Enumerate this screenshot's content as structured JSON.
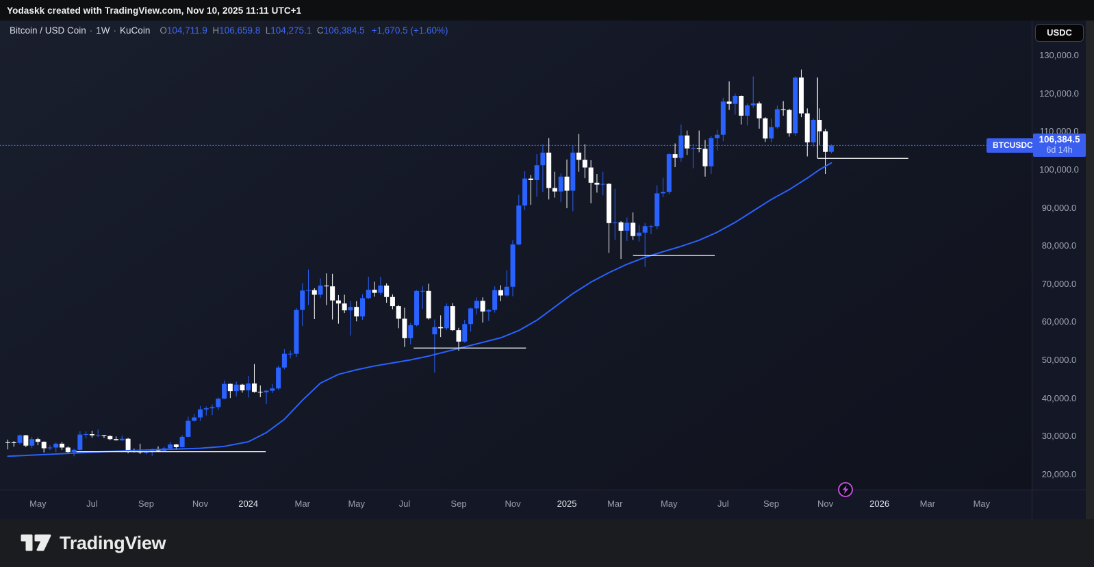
{
  "attribution": "Yodaskk created with TradingView.com, Nov 10, 2025 11:11 UTC+1",
  "legend": {
    "symbol": "Bitcoin / USD Coin",
    "sep": "·",
    "interval": "1W",
    "exchange": "KuCoin",
    "o_label": "O",
    "o": "104,711.9",
    "h_label": "H",
    "h": "106,659.8",
    "l_label": "L",
    "l": "104,275.1",
    "c_label": "C",
    "c": "106,384.5",
    "change": "+1,670.5 (+1.60%)"
  },
  "price_axis": {
    "currency_button": "USDC",
    "price_label": {
      "value": "106,384.5",
      "countdown": "6d 14h"
    }
  },
  "symbol_tag": "BTCUSDC",
  "footer": {
    "brand": "TradingView"
  },
  "colors": {
    "candle_up": "#2962ff",
    "candle_down": "#ffffff",
    "ma_line": "#2962ff",
    "support_line": "#ffffff",
    "price_line": "#2f62ff",
    "label_blue": "#3a5ef0",
    "marker_purple": "#bd4fd8"
  },
  "icons": {
    "lightning_marker": "lightning-bolt",
    "tradingview_logo": "tv-monogram"
  },
  "chart_data": {
    "type": "candlestick",
    "title": "Bitcoin / USD Coin · 1W · KuCoin",
    "symbol": "BTCUSDC",
    "interval": "1W",
    "exchange": "KuCoin",
    "last_ohlc": {
      "open": 104711.9,
      "high": 106659.8,
      "low": 104275.1,
      "close": 106384.5,
      "change": 1670.5,
      "change_pct": 1.6
    },
    "ylim": [
      20000,
      130000
    ],
    "grid": false,
    "price_ticks": [
      {
        "text": "130,000.0",
        "price": 130000
      },
      {
        "text": "120,000.0",
        "price": 120000
      },
      {
        "text": "110,000.0",
        "price": 110000
      },
      {
        "text": "100,000.0",
        "price": 100000
      },
      {
        "text": "90,000.0",
        "price": 90000
      },
      {
        "text": "80,000.0",
        "price": 80000
      },
      {
        "text": "70,000.0",
        "price": 70000
      },
      {
        "text": "60,000.0",
        "price": 60000
      },
      {
        "text": "50,000.0",
        "price": 50000
      },
      {
        "text": "40,000.0",
        "price": 40000
      },
      {
        "text": "30,000.0",
        "price": 30000
      },
      {
        "text": "20,000.0",
        "price": 20000
      }
    ],
    "time_ticks": [
      {
        "label": "May",
        "week": 5,
        "year": false
      },
      {
        "label": "Jul",
        "week": 14,
        "year": false
      },
      {
        "label": "Sep",
        "week": 23,
        "year": false
      },
      {
        "label": "Nov",
        "week": 32,
        "year": false
      },
      {
        "label": "2024",
        "week": 40,
        "year": true
      },
      {
        "label": "Mar",
        "week": 49,
        "year": false
      },
      {
        "label": "May",
        "week": 58,
        "year": false
      },
      {
        "label": "Jul",
        "week": 66,
        "year": false
      },
      {
        "label": "Sep",
        "week": 75,
        "year": false
      },
      {
        "label": "Nov",
        "week": 84,
        "year": false
      },
      {
        "label": "2025",
        "week": 93,
        "year": true
      },
      {
        "label": "Mar",
        "week": 101,
        "year": false
      },
      {
        "label": "May",
        "week": 110,
        "year": false
      },
      {
        "label": "Jul",
        "week": 119,
        "year": false
      },
      {
        "label": "Sep",
        "week": 127,
        "year": false
      },
      {
        "label": "Nov",
        "week": 136,
        "year": false
      },
      {
        "label": "2026",
        "week": 145,
        "year": true
      },
      {
        "label": "Mar",
        "week": 153,
        "year": false
      },
      {
        "label": "May",
        "week": 162,
        "year": false
      }
    ],
    "candles_ohlc": [
      [
        28500,
        29200,
        26600,
        28450
      ],
      [
        28450,
        28800,
        27300,
        28300
      ],
      [
        28300,
        30500,
        27900,
        30300
      ],
      [
        30300,
        30400,
        27200,
        27600
      ],
      [
        27600,
        29900,
        26900,
        29300
      ],
      [
        29300,
        29700,
        27700,
        28600
      ],
      [
        28600,
        28700,
        25800,
        26900
      ],
      [
        26900,
        27700,
        26400,
        27100
      ],
      [
        27100,
        28400,
        25900,
        28100
      ],
      [
        28100,
        28500,
        26500,
        27100
      ],
      [
        27100,
        27400,
        25400,
        25900
      ],
      [
        25900,
        26800,
        24800,
        26500
      ],
      [
        26500,
        31400,
        26300,
        30500
      ],
      [
        30500,
        31300,
        29500,
        30600
      ],
      [
        30600,
        31500,
        29700,
        30300
      ],
      [
        30300,
        31800,
        29900,
        30300
      ],
      [
        30300,
        30400,
        29600,
        30100
      ],
      [
        30100,
        30300,
        29000,
        29300
      ],
      [
        29300,
        30000,
        28900,
        29000
      ],
      [
        29000,
        30200,
        28800,
        29400
      ],
      [
        29400,
        29600,
        25600,
        26100
      ],
      [
        26100,
        26800,
        25800,
        26000
      ],
      [
        26000,
        28100,
        25400,
        25900
      ],
      [
        25900,
        26400,
        25300,
        25900
      ],
      [
        25900,
        26800,
        24900,
        26500
      ],
      [
        26500,
        27400,
        26100,
        26200
      ],
      [
        26200,
        27300,
        26000,
        26900
      ],
      [
        26900,
        28600,
        26500,
        27900
      ],
      [
        27900,
        28000,
        26500,
        27200
      ],
      [
        27200,
        30300,
        27100,
        29900
      ],
      [
        29900,
        35200,
        29800,
        34100
      ],
      [
        34100,
        35900,
        33900,
        35000
      ],
      [
        35000,
        38000,
        34100,
        37100
      ],
      [
        37100,
        37900,
        35500,
        37400
      ],
      [
        37400,
        38400,
        35600,
        37700
      ],
      [
        37700,
        40200,
        36900,
        39900
      ],
      [
        39900,
        44700,
        39900,
        43800
      ],
      [
        43800,
        43900,
        40100,
        41900
      ],
      [
        41900,
        44400,
        40500,
        43600
      ],
      [
        43600,
        43800,
        41500,
        42100
      ],
      [
        42100,
        45900,
        40200,
        43900
      ],
      [
        43900,
        49000,
        41500,
        41700
      ],
      [
        41700,
        43400,
        40300,
        41600
      ],
      [
        41600,
        42200,
        38500,
        42000
      ],
      [
        42000,
        43800,
        41400,
        42600
      ],
      [
        42600,
        48600,
        42200,
        48100
      ],
      [
        48100,
        52900,
        47600,
        51700
      ],
      [
        51700,
        52500,
        50500,
        51700
      ],
      [
        51700,
        63700,
        50900,
        63200
      ],
      [
        63200,
        70200,
        59000,
        68300
      ],
      [
        68300,
        73800,
        64500,
        68400
      ],
      [
        68400,
        68900,
        60800,
        67200
      ],
      [
        67200,
        71500,
        66400,
        69600
      ],
      [
        69600,
        72800,
        64500,
        69400
      ],
      [
        69400,
        72700,
        60700,
        65700
      ],
      [
        65700,
        67100,
        59600,
        64900
      ],
      [
        64900,
        67200,
        62400,
        63100
      ],
      [
        63100,
        65500,
        56500,
        64000
      ],
      [
        64000,
        65500,
        60200,
        61500
      ],
      [
        61500,
        67300,
        60600,
        66300
      ],
      [
        66300,
        71900,
        66100,
        68500
      ],
      [
        68500,
        70600,
        66700,
        67700
      ],
      [
        67700,
        71900,
        67100,
        69600
      ],
      [
        69600,
        70200,
        65100,
        66600
      ],
      [
        66600,
        67300,
        63400,
        64200
      ],
      [
        64200,
        64500,
        58400,
        60900
      ],
      [
        60900,
        63800,
        53500,
        55800
      ],
      [
        55800,
        59800,
        54200,
        59200
      ],
      [
        59200,
        68400,
        58900,
        68200
      ],
      [
        68200,
        69400,
        63500,
        68200
      ],
      [
        68200,
        70100,
        60700,
        61000
      ],
      [
        56800,
        60700,
        46800,
        58700
      ],
      [
        58700,
        61800,
        56100,
        58400
      ],
      [
        58400,
        64900,
        57900,
        64200
      ],
      [
        64200,
        65000,
        57700,
        57900
      ],
      [
        57900,
        58500,
        52500,
        54900
      ],
      [
        54900,
        60600,
        54600,
        59500
      ],
      [
        59500,
        63800,
        57500,
        63600
      ],
      [
        63600,
        66500,
        62000,
        65600
      ],
      [
        65600,
        66500,
        59900,
        62800
      ],
      [
        62800,
        63400,
        60300,
        63200
      ],
      [
        63200,
        69400,
        62500,
        68400
      ],
      [
        68400,
        69700,
        65500,
        67000
      ],
      [
        67000,
        73600,
        66700,
        69300
      ],
      [
        69300,
        81500,
        66800,
        80400
      ],
      [
        80400,
        93400,
        80200,
        90600
      ],
      [
        90600,
        99600,
        89400,
        97700
      ],
      [
        97700,
        98600,
        90800,
        97300
      ],
      [
        97300,
        104100,
        92900,
        101200
      ],
      [
        101200,
        106600,
        94200,
        104500
      ],
      [
        104500,
        108300,
        92200,
        95200
      ],
      [
        95200,
        99500,
        92700,
        94300
      ],
      [
        94300,
        99000,
        91500,
        98200
      ],
      [
        98200,
        102700,
        89900,
        94500
      ],
      [
        94500,
        106400,
        89100,
        104500
      ],
      [
        104500,
        109400,
        99500,
        102600
      ],
      [
        102600,
        106700,
        97800,
        100600
      ],
      [
        100600,
        102500,
        91200,
        96600
      ],
      [
        96600,
        98900,
        94000,
        96100
      ],
      [
        96100,
        99500,
        93300,
        96300
      ],
      [
        96300,
        96500,
        78200,
        86000
      ],
      [
        86000,
        95000,
        81600,
        86200
      ],
      [
        86200,
        86500,
        76600,
        84000
      ],
      [
        84000,
        87500,
        81300,
        86100
      ],
      [
        86100,
        88800,
        81600,
        82600
      ],
      [
        82600,
        85500,
        81200,
        83500
      ],
      [
        83500,
        86000,
        74500,
        85200
      ],
      [
        85200,
        85500,
        83100,
        85200
      ],
      [
        85200,
        95900,
        84400,
        93800
      ],
      [
        93800,
        97900,
        92800,
        94200
      ],
      [
        94200,
        104300,
        93600,
        104100
      ],
      [
        104100,
        106900,
        100700,
        103100
      ],
      [
        103100,
        111900,
        102100,
        109000
      ],
      [
        109000,
        110300,
        103900,
        105600
      ],
      [
        105600,
        106800,
        100400,
        105700
      ],
      [
        105700,
        110300,
        104600,
        105500
      ],
      [
        105500,
        107800,
        98200,
        100900
      ],
      [
        100900,
        108800,
        98900,
        108300
      ],
      [
        108300,
        110500,
        105100,
        109200
      ],
      [
        109200,
        118900,
        107500,
        117900
      ],
      [
        117900,
        123200,
        115700,
        117300
      ],
      [
        117300,
        120000,
        114500,
        119400
      ],
      [
        119400,
        119500,
        111900,
        114200
      ],
      [
        114200,
        117400,
        111600,
        116900
      ],
      [
        116900,
        124500,
        116200,
        117400
      ],
      [
        117400,
        117900,
        110800,
        113500
      ],
      [
        113500,
        113800,
        107300,
        108200
      ],
      [
        108200,
        113400,
        107200,
        111200
      ],
      [
        111200,
        116800,
        110800,
        115900
      ],
      [
        115900,
        118000,
        114200,
        115700
      ],
      [
        115700,
        116000,
        108700,
        109600
      ],
      [
        109600,
        124500,
        108800,
        124200
      ],
      [
        124200,
        126300,
        113800,
        114800
      ],
      [
        114800,
        116100,
        103500,
        107200
      ],
      [
        107200,
        113500,
        106100,
        113100
      ],
      [
        113100,
        116100,
        106500,
        110100
      ],
      [
        110100,
        110700,
        98900,
        104700
      ],
      [
        104711.9,
        106659.8,
        104275.1,
        106384.5
      ]
    ],
    "ma_line": {
      "color": "#2962ff",
      "points": [
        [
          0,
          24800
        ],
        [
          4,
          25100
        ],
        [
          8,
          25400
        ],
        [
          12,
          25700
        ],
        [
          16,
          26000
        ],
        [
          20,
          26300
        ],
        [
          24,
          26500
        ],
        [
          28,
          26700
        ],
        [
          32,
          26900
        ],
        [
          36,
          27400
        ],
        [
          40,
          28600
        ],
        [
          43,
          31000
        ],
        [
          46,
          34500
        ],
        [
          49,
          39500
        ],
        [
          52,
          44000
        ],
        [
          55,
          46300
        ],
        [
          58,
          47500
        ],
        [
          61,
          48500
        ],
        [
          64,
          49300
        ],
        [
          67,
          50100
        ],
        [
          70,
          51100
        ],
        [
          73,
          52300
        ],
        [
          76,
          53500
        ],
        [
          79,
          54700
        ],
        [
          82,
          55900
        ],
        [
          85,
          57800
        ],
        [
          88,
          60500
        ],
        [
          91,
          64000
        ],
        [
          94,
          67500
        ],
        [
          97,
          70500
        ],
        [
          100,
          73000
        ],
        [
          103,
          75200
        ],
        [
          106,
          77000
        ],
        [
          109,
          78500
        ],
        [
          112,
          79900
        ],
        [
          115,
          81500
        ],
        [
          118,
          83600
        ],
        [
          121,
          86200
        ],
        [
          124,
          89200
        ],
        [
          127,
          92200
        ],
        [
          130,
          94800
        ],
        [
          133,
          97800
        ],
        [
          135,
          100000
        ],
        [
          137,
          101800
        ]
      ]
    },
    "support_lines": [
      {
        "from_week": 11.4,
        "to_week": 42.9,
        "price": 26000
      },
      {
        "from_week": 67.5,
        "to_week": 86.2,
        "price": 53200
      },
      {
        "from_week": 104.0,
        "to_week": 117.6,
        "price": 77500
      },
      {
        "from_week": 134.7,
        "to_week": 149.8,
        "price": 103000
      }
    ],
    "vertical_line": {
      "week": 134.7,
      "from_price": 124200,
      "to_price": 103000
    },
    "current_price_line": {
      "price": 106384.5,
      "style": "dotted",
      "color": "#2f62ff"
    }
  }
}
